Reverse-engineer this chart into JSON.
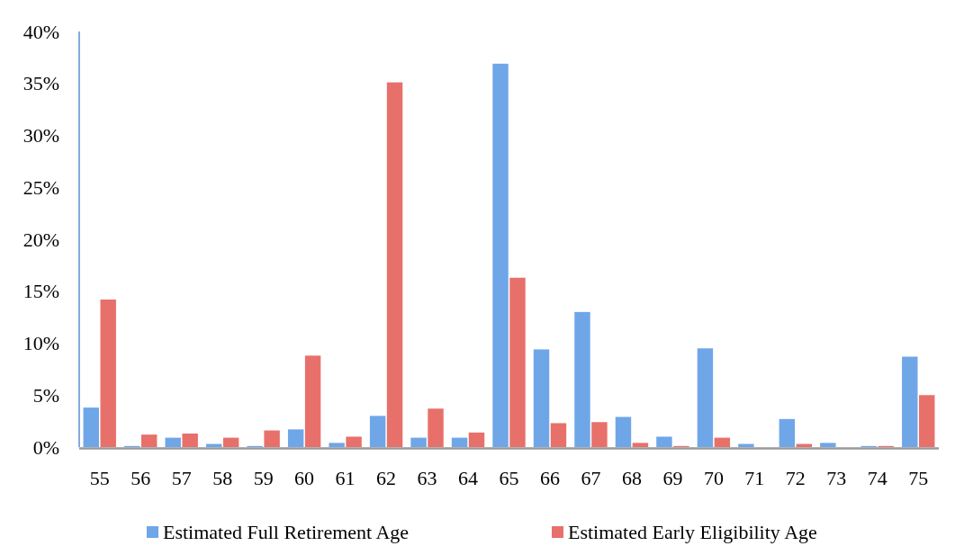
{
  "chart_data": {
    "type": "bar",
    "categories": [
      "55",
      "56",
      "57",
      "58",
      "59",
      "60",
      "61",
      "62",
      "63",
      "64",
      "65",
      "66",
      "67",
      "68",
      "69",
      "70",
      "71",
      "72",
      "73",
      "74",
      "75"
    ],
    "series": [
      {
        "name": "Estimated Full Retirement Age",
        "color": "#6ea6e8",
        "values": [
          3.8,
          0.1,
          0.9,
          0.3,
          0.1,
          1.7,
          0.4,
          3.0,
          0.9,
          0.9,
          36.9,
          9.4,
          13.0,
          2.9,
          1.0,
          9.5,
          0.3,
          2.7,
          0.4,
          0.1,
          8.7
        ]
      },
      {
        "name": "Estimated Early Eligibility Age",
        "color": "#e8706a",
        "values": [
          14.2,
          1.2,
          1.3,
          0.9,
          1.6,
          8.8,
          1.0,
          35.1,
          3.7,
          1.4,
          16.3,
          2.3,
          2.4,
          0.4,
          0.1,
          0.9,
          0,
          0.3,
          0,
          0.1,
          5.0
        ]
      }
    ],
    "ylim": [
      0,
      40
    ],
    "yticks": [
      {
        "value": 0,
        "label": "0%"
      },
      {
        "value": 5,
        "label": "5%"
      },
      {
        "value": 10,
        "label": "10%"
      },
      {
        "value": 15,
        "label": "15%"
      },
      {
        "value": 20,
        "label": "20%"
      },
      {
        "value": 25,
        "label": "25%"
      },
      {
        "value": 30,
        "label": "30%"
      },
      {
        "value": 35,
        "label": "35%"
      },
      {
        "value": 40,
        "label": "40%"
      }
    ],
    "grid": false,
    "legend": "bottom"
  }
}
